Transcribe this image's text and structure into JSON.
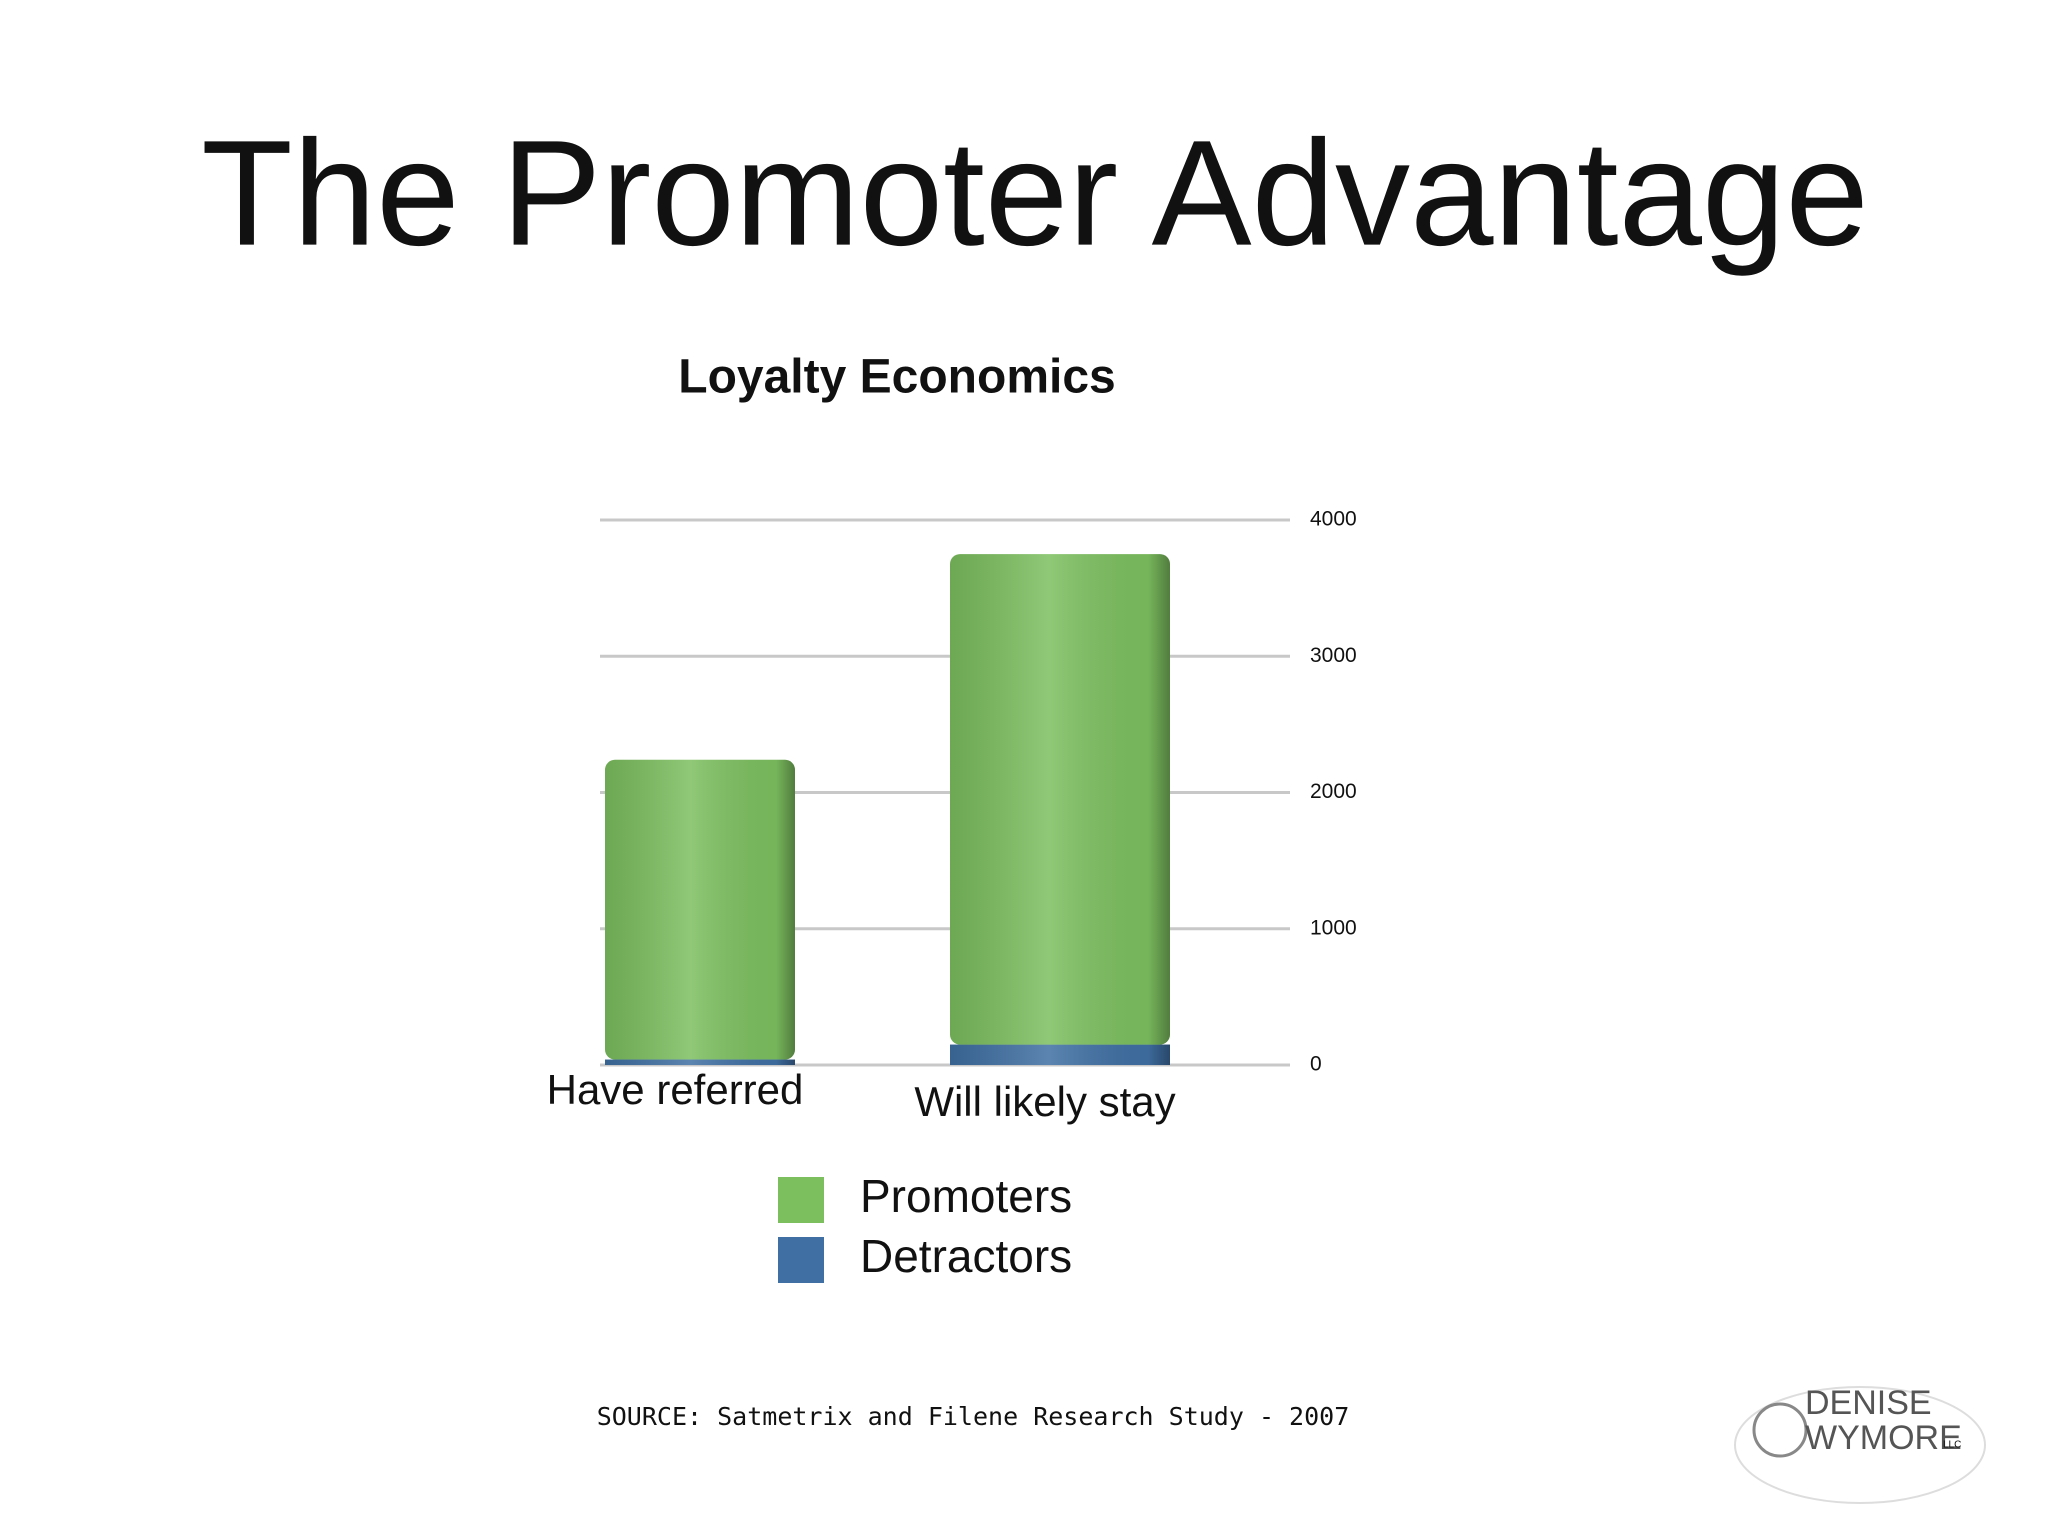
{
  "slide": {
    "title": "The Promoter Advantage",
    "source": "SOURCE: Satmetrix and Filene Research Study - 2007",
    "logo": [
      "DENISE",
      "WYMORE",
      "LLC"
    ]
  },
  "chart_data": {
    "type": "bar",
    "stacked": true,
    "title": "Loyalty Economics",
    "categories": [
      "Have referred",
      "Will likely stay"
    ],
    "series": [
      {
        "name": "Promoters",
        "color": "#7cbf5f",
        "values": [
          2200,
          3600
        ]
      },
      {
        "name": "Detractors",
        "color": "#3f6fa3",
        "values": [
          40,
          150
        ]
      }
    ],
    "ylim": [
      0,
      4000
    ],
    "yticks": [
      0,
      1000,
      2000,
      3000,
      4000
    ],
    "grid": true,
    "legend": "bottom"
  }
}
